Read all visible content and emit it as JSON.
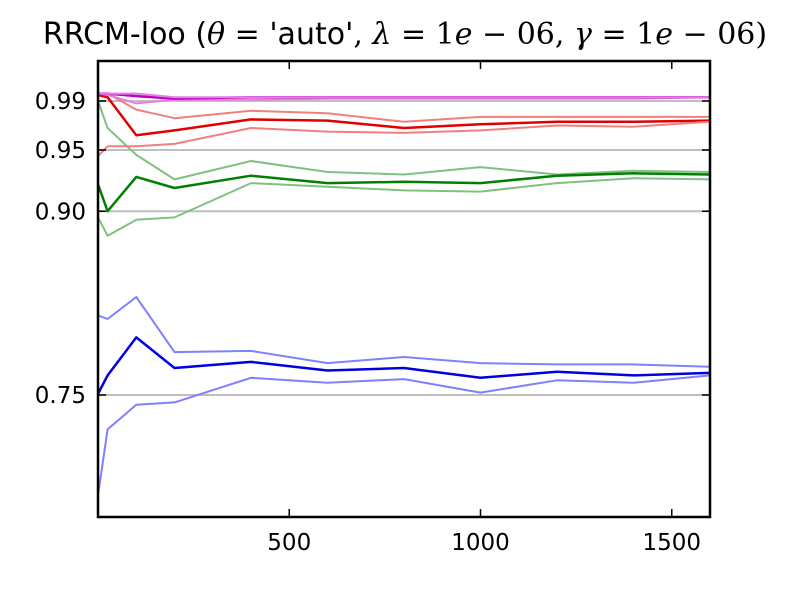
{
  "chart_data": {
    "type": "line",
    "title": {
      "prefix": "RRCM-loo (",
      "theta_sym": "θ",
      "theta_eq": " = ",
      "theta_val": "'auto'",
      "sep1": ", ",
      "lambda_sym": "λ",
      "lambda_eq": " = ",
      "lambda_val_a": "1",
      "lambda_val_e": "e",
      "lambda_val_b": " − 06",
      "sep2": ", ",
      "gamma_sym": "γ",
      "gamma_eq": " = ",
      "gamma_val_a": "1",
      "gamma_val_e": "e",
      "gamma_val_b": " − 06",
      "suffix": ")"
    },
    "xlabel": "",
    "ylabel": "",
    "xlim": [
      0,
      1600
    ],
    "ylim": [
      0.65,
      1.0
    ],
    "x_ticks": [
      500,
      1000,
      1500
    ],
    "x_tick_labels": [
      "500",
      "1000",
      "1500"
    ],
    "y_ticks": [
      0.75,
      0.9,
      0.95,
      0.99
    ],
    "y_tick_labels": [
      "0.75",
      "0.90",
      "0.95",
      "0.99"
    ],
    "reference_lines": [
      0.75,
      0.9,
      0.95,
      0.99
    ],
    "reference_color": "#bfbfbf",
    "x": [
      0,
      25,
      100,
      200,
      400,
      600,
      800,
      1000,
      1200,
      1400,
      1600
    ],
    "series": [
      {
        "color": "#8080ff",
        "width": 2,
        "values": [
          0.815,
          0.812,
          0.83,
          0.785,
          0.786,
          0.776,
          0.781,
          0.776,
          0.775,
          0.775,
          0.773
        ]
      },
      {
        "color": "#0000e0",
        "width": 2.5,
        "values": [
          0.751,
          0.766,
          0.797,
          0.772,
          0.777,
          0.77,
          0.772,
          0.764,
          0.769,
          0.766,
          0.768
        ]
      },
      {
        "color": "#8080ff",
        "width": 2,
        "values": [
          0.668,
          0.722,
          0.742,
          0.744,
          0.764,
          0.76,
          0.763,
          0.752,
          0.762,
          0.76,
          0.766
        ]
      },
      {
        "color": "#80c080",
        "width": 2,
        "values": [
          0.99,
          0.968,
          0.946,
          0.926,
          0.941,
          0.932,
          0.93,
          0.936,
          0.93,
          0.933,
          0.932
        ]
      },
      {
        "color": "#008000",
        "width": 2.5,
        "values": [
          0.922,
          0.9,
          0.928,
          0.919,
          0.929,
          0.923,
          0.924,
          0.923,
          0.929,
          0.931,
          0.93
        ]
      },
      {
        "color": "#80c080",
        "width": 2,
        "values": [
          0.895,
          0.88,
          0.893,
          0.895,
          0.923,
          0.92,
          0.917,
          0.916,
          0.923,
          0.927,
          0.926
        ]
      },
      {
        "color": "#f08080",
        "width": 2,
        "values": [
          0.995,
          0.996,
          0.983,
          0.976,
          0.982,
          0.98,
          0.973,
          0.977,
          0.977,
          0.977,
          0.977
        ]
      },
      {
        "color": "#e00000",
        "width": 2.5,
        "values": [
          0.995,
          0.993,
          0.962,
          0.966,
          0.975,
          0.974,
          0.968,
          0.971,
          0.973,
          0.973,
          0.974
        ]
      },
      {
        "color": "#f08080",
        "width": 2,
        "values": [
          0.945,
          0.953,
          0.953,
          0.955,
          0.968,
          0.965,
          0.964,
          0.966,
          0.97,
          0.969,
          0.973
        ]
      },
      {
        "color": "#e080e0",
        "width": 2,
        "values": [
          0.996,
          0.995,
          0.988,
          0.991,
          0.991,
          0.992,
          0.992,
          0.992,
          0.992,
          0.992,
          0.993
        ]
      },
      {
        "color": "#c000c0",
        "width": 2.5,
        "values": [
          0.996,
          0.996,
          0.994,
          0.992,
          0.993,
          0.993,
          0.993,
          0.993,
          0.993,
          0.993,
          0.993
        ]
      },
      {
        "color": "#e080e0",
        "width": 2,
        "values": [
          0.996,
          0.996,
          0.996,
          0.993,
          0.993,
          0.993,
          0.993,
          0.993,
          0.993,
          0.993,
          0.993
        ]
      }
    ]
  }
}
